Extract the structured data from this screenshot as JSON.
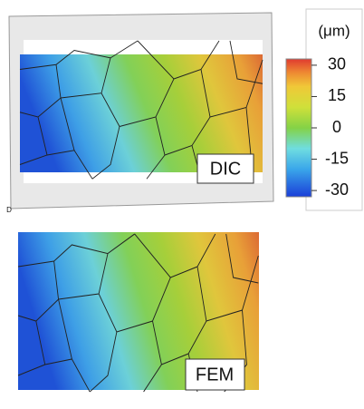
{
  "corner_mark": "D",
  "dic_map": {
    "label": "DIC"
  },
  "fem_map": {
    "label": "FEM"
  },
  "colorbar": {
    "unit": "(μm)",
    "ticks": [
      30,
      15,
      0,
      -15,
      -30
    ],
    "range": [
      -33,
      33
    ]
  }
}
